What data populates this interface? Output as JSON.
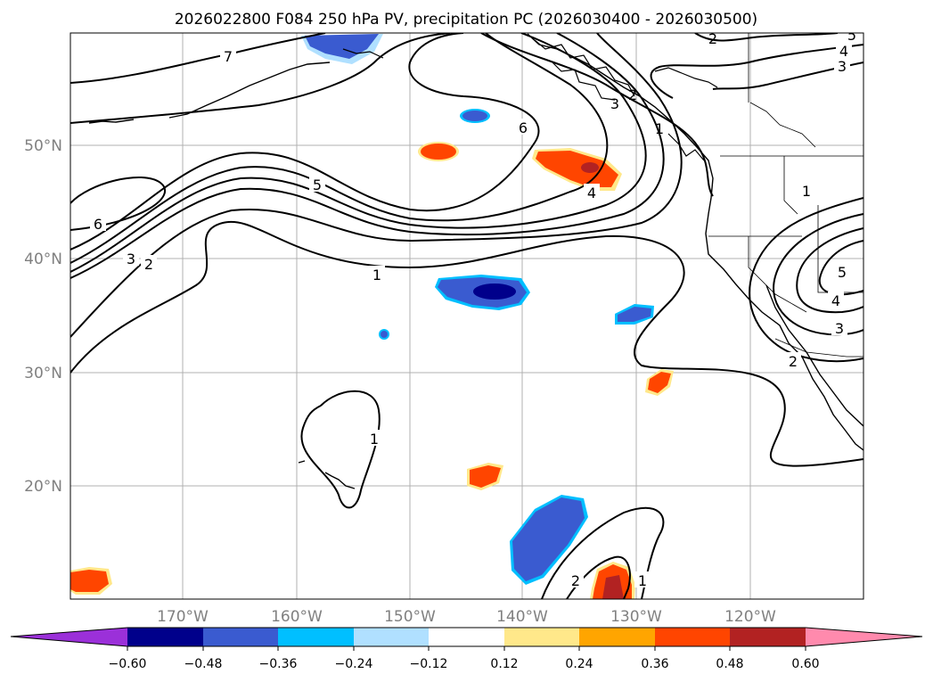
{
  "figure": {
    "title": "2026022800 F084 250 hPa PV, precipitation PC (2026030400 - 2026030500)"
  },
  "map": {
    "lon_labels": [
      "170°W",
      "160°W",
      "150°W",
      "140°W",
      "130°W",
      "120°W"
    ],
    "lat_labels": [
      "50°N",
      "40°N",
      "30°N",
      "20°N"
    ],
    "axis_label_color": "#808080",
    "gridline_color": "#b0b0b0",
    "contour_labels": [
      "7",
      "6",
      "5",
      "4",
      "3",
      "2",
      "1",
      "6",
      "3",
      "2",
      "1",
      "1",
      "2",
      "1",
      "2",
      "1",
      "3",
      "4",
      "5",
      "3",
      "4",
      "5",
      "2"
    ]
  },
  "colorbar": {
    "tick_labels": [
      "−0.60",
      "−0.48",
      "−0.36",
      "−0.24",
      "−0.12",
      "0.12",
      "0.24",
      "0.36",
      "0.48",
      "0.60"
    ],
    "colors": [
      "#9b30d9",
      "#00008b",
      "#3a5bd0",
      "#00bfff",
      "#b0e0ff",
      "#ffffff",
      "#ffe88a",
      "#ffa500",
      "#ff4500",
      "#b22222",
      "#ff8aad"
    ]
  }
}
